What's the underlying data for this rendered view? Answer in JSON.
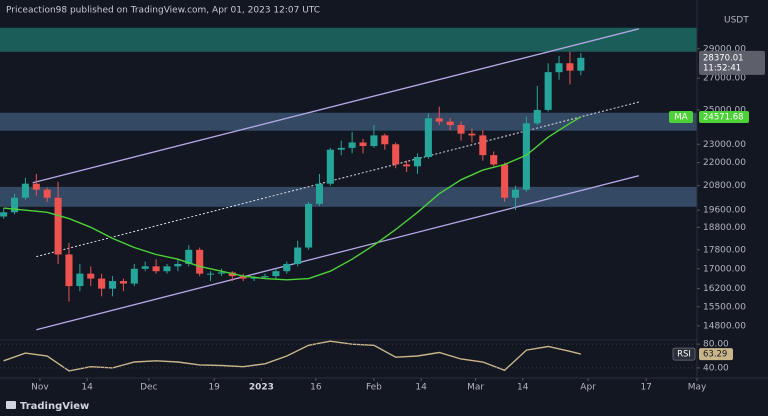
{
  "chart_data": {
    "type": "candlestick",
    "header": "Priceaction98 published on TradingView.com, Apr 01, 2023 12:07 UTC",
    "currency": "USDT",
    "brand": "TradingView",
    "countdown": "11:52:41",
    "log_scale": true,
    "up_color": "#26a69a",
    "down_color": "#ef5350",
    "x": [
      -10,
      -7,
      -4,
      -1,
      2,
      5,
      8,
      11,
      14,
      17,
      20,
      23,
      26,
      29,
      32,
      35,
      38,
      41,
      44,
      47,
      50,
      53,
      56,
      59,
      62,
      65,
      68,
      71,
      74,
      77,
      80,
      83,
      86,
      89,
      92,
      95,
      98,
      101,
      104,
      107,
      110,
      113,
      116,
      119,
      122,
      125,
      128,
      131,
      134,
      137,
      140,
      143,
      146,
      149
    ],
    "open": [
      19300,
      19500,
      20200,
      20900,
      20600,
      20200,
      17600,
      16300,
      16800,
      16600,
      16200,
      16500,
      16400,
      17000,
      17100,
      16900,
      17100,
      17200,
      17800,
      16800,
      16800,
      16850,
      16700,
      16600,
      16650,
      16700,
      16900,
      17200,
      17900,
      19900,
      20900,
      22700,
      22800,
      23100,
      22900,
      23500,
      23000,
      21900,
      21800,
      22300,
      24500,
      24300,
      24100,
      23600,
      23500,
      22400,
      21900,
      20200,
      20600,
      24200,
      25000,
      27400,
      28000,
      27500
    ],
    "high": [
      19700,
      20400,
      21200,
      21400,
      20700,
      21000,
      18100,
      17200,
      17100,
      16800,
      16700,
      16600,
      17200,
      17300,
      17400,
      17200,
      17400,
      18000,
      17900,
      16900,
      17000,
      16900,
      16800,
      16700,
      16800,
      17000,
      17300,
      18200,
      20000,
      21400,
      22800,
      23200,
      23700,
      23300,
      24100,
      23600,
      23100,
      22100,
      22500,
      24800,
      25200,
      24500,
      24300,
      23900,
      23800,
      22600,
      22000,
      20800,
      24600,
      26500,
      28000,
      28500,
      28800,
      28700
    ],
    "low": [
      19200,
      19400,
      20100,
      20300,
      20000,
      17200,
      15700,
      16100,
      16300,
      15900,
      15900,
      16100,
      16300,
      16900,
      16800,
      16800,
      16900,
      17100,
      16700,
      16500,
      16700,
      16500,
      16500,
      16500,
      16600,
      16600,
      16800,
      17100,
      17800,
      19800,
      20800,
      22400,
      22500,
      22500,
      22800,
      22700,
      21700,
      21500,
      21400,
      22200,
      24100,
      23800,
      23200,
      23100,
      22100,
      21800,
      20000,
      19600,
      20500,
      24100,
      24900,
      26900,
      26600,
      27200
    ],
    "close": [
      19500,
      20200,
      20900,
      20600,
      20200,
      17600,
      16300,
      16800,
      16600,
      16200,
      16500,
      16400,
      17000,
      17100,
      16900,
      17100,
      17200,
      17800,
      16800,
      16800,
      16850,
      16700,
      16600,
      16650,
      16700,
      16900,
      17200,
      17900,
      19900,
      20900,
      22700,
      22800,
      23100,
      22900,
      23500,
      23000,
      21900,
      21800,
      22300,
      24500,
      24300,
      24100,
      23600,
      23500,
      22400,
      21900,
      20200,
      20600,
      24200,
      25000,
      27400,
      28000,
      27500,
      28370.01
    ],
    "xlim": [
      -11,
      181
    ],
    "xticks": [
      {
        "value": 0,
        "label": "Nov"
      },
      {
        "value": 13,
        "label": "14"
      },
      {
        "value": 30,
        "label": "Dec"
      },
      {
        "value": 48,
        "label": "19"
      },
      {
        "value": 61,
        "label": "2023",
        "bold": true
      },
      {
        "value": 76,
        "label": "16"
      },
      {
        "value": 92,
        "label": "Feb"
      },
      {
        "value": 105,
        "label": "14"
      },
      {
        "value": 120,
        "label": "Mar"
      },
      {
        "value": 133,
        "label": "14"
      },
      {
        "value": 151,
        "label": "Apr"
      },
      {
        "value": 167,
        "label": "17"
      },
      {
        "value": 181,
        "label": "May"
      }
    ],
    "ylim": [
      14300,
      31100
    ],
    "yticks": [
      {
        "value": 29000,
        "label": "29000.00"
      },
      {
        "value": 27000,
        "label": "27000.00"
      },
      {
        "value": 25000,
        "label": "25000.00"
      },
      {
        "value": 23000,
        "label": "23000.00"
      },
      {
        "value": 22000,
        "label": "22000.00"
      },
      {
        "value": 20800,
        "label": "20800.00"
      },
      {
        "value": 19600,
        "label": "19600.00"
      },
      {
        "value": 18800,
        "label": "18800.00"
      },
      {
        "value": 17800,
        "label": "17800.00"
      },
      {
        "value": 17000,
        "label": "17000.00"
      },
      {
        "value": 16200,
        "label": "16200.00"
      },
      {
        "value": 15500,
        "label": "15500.00"
      },
      {
        "value": 14800,
        "label": "14800.00"
      }
    ],
    "zones": [
      {
        "low": 28790,
        "high": 30520,
        "color": "#1d6b63"
      },
      {
        "low": 23770,
        "high": 24830,
        "color": "#3a5270"
      },
      {
        "low": 19760,
        "high": 20740,
        "color": "#3a5270"
      }
    ],
    "lines": [
      {
        "x": [
          -2,
          165
        ],
        "values": [
          20950,
          30440
        ],
        "color": "#b4a8e6",
        "dashed": false
      },
      {
        "x": [
          -1,
          165
        ],
        "values": [
          14660,
          21310
        ],
        "color": "#b4a8e6",
        "dashed": false
      },
      {
        "x": [
          -1,
          165
        ],
        "values": [
          17510,
          25490
        ],
        "color": "#e0e0e8",
        "dashed": true
      }
    ],
    "ma": {
      "name": "MA",
      "color": "#4cd137",
      "x": [
        -10,
        -4,
        2,
        8,
        14,
        20,
        26,
        32,
        38,
        44,
        50,
        56,
        62,
        68,
        74,
        80,
        86,
        92,
        98,
        104,
        110,
        116,
        122,
        128,
        134,
        140,
        146,
        149
      ],
      "values": [
        19700,
        19600,
        19500,
        19200,
        18800,
        18300,
        17900,
        17600,
        17400,
        17100,
        16900,
        16700,
        16600,
        16550,
        16600,
        16900,
        17400,
        18000,
        18700,
        19500,
        20400,
        21100,
        21600,
        21900,
        22400,
        23400,
        24200,
        24571.68
      ]
    },
    "rsi": {
      "name": "RSI",
      "color": "#c9b58a",
      "ylim": [
        23,
        87
      ],
      "yticks": [
        {
          "value": 80,
          "label": "80.00"
        },
        {
          "value": 40,
          "label": "40.00"
        }
      ],
      "x": [
        -10,
        -4,
        2,
        8,
        14,
        20,
        26,
        32,
        38,
        44,
        50,
        56,
        62,
        68,
        74,
        80,
        86,
        92,
        98,
        104,
        110,
        116,
        122,
        128,
        134,
        140,
        146,
        149
      ],
      "values": [
        52,
        65,
        60,
        35,
        42,
        40,
        50,
        52,
        50,
        45,
        44,
        42,
        47,
        60,
        78,
        85,
        80,
        78,
        58,
        60,
        66,
        55,
        50,
        36,
        70,
        76,
        68,
        63.29
      ]
    }
  }
}
